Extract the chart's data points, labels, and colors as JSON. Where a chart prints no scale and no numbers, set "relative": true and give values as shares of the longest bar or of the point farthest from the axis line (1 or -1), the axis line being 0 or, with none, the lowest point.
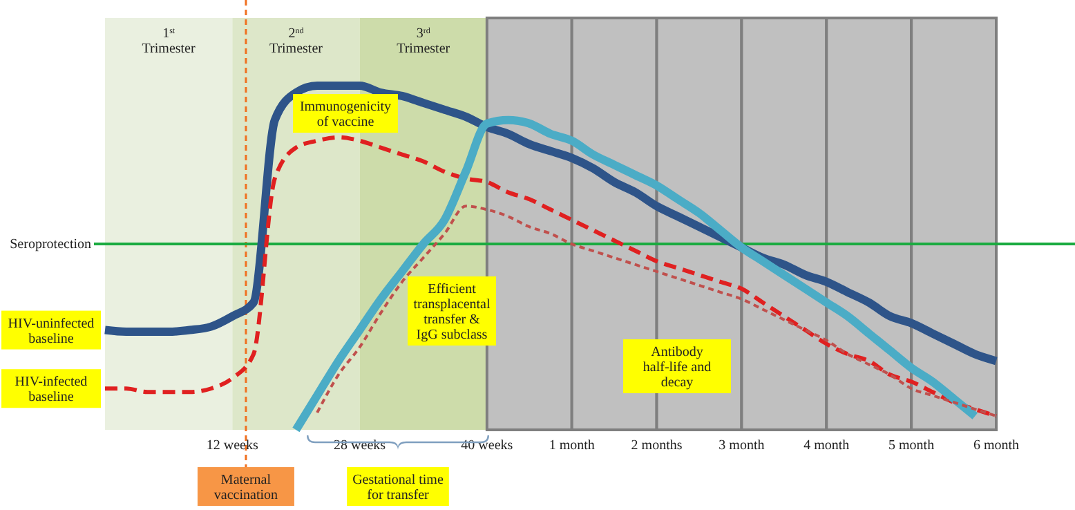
{
  "chart_data": {
    "type": "line",
    "relative": true,
    "tick_labels": "x",
    "categories": [
      null,
      null,
      null,
      null,
      null,
      null,
      "12 weeks",
      null,
      null,
      null,
      null,
      null,
      "28 weeks",
      null,
      null,
      null,
      null,
      null,
      "40 weeks",
      null,
      null,
      null,
      "1 month",
      null,
      null,
      null,
      "2 months",
      null,
      null,
      null,
      "3 month",
      null,
      null,
      null,
      "4 month",
      null,
      null,
      null,
      "5 month",
      null,
      null,
      null,
      "6 month"
    ],
    "series": [
      {
        "name": "HIV-uninfected baseline",
        "color": "#2e5489",
        "line_style": "solid",
        "values": [
          0.29,
          0.285,
          0.285,
          0.285,
          0.29,
          0.3,
          0.33,
          0.37,
          0.9,
          0.98,
          1.0,
          1.0,
          1.0,
          0.98,
          0.97,
          0.95,
          0.93,
          0.91,
          0.88,
          0.86,
          0.83,
          0.81,
          0.79,
          0.76,
          0.72,
          0.69,
          0.65,
          0.62,
          0.59,
          0.56,
          0.53,
          0.5,
          0.48,
          0.45,
          0.43,
          0.4,
          0.37,
          0.33,
          0.31,
          0.28,
          0.25,
          0.22,
          0.2
        ]
      },
      {
        "name": "HIV-infected baseline",
        "color": "#e02020",
        "line_style": "dashed",
        "values": [
          0.12,
          0.12,
          0.11,
          0.11,
          0.11,
          0.12,
          0.15,
          0.22,
          0.73,
          0.82,
          0.84,
          0.85,
          0.84,
          0.82,
          0.8,
          0.78,
          0.75,
          0.73,
          0.72,
          0.69,
          0.67,
          0.64,
          0.61,
          0.58,
          0.55,
          0.52,
          0.49,
          0.47,
          0.45,
          0.43,
          0.41,
          0.37,
          0.33,
          0.29,
          0.25,
          0.22,
          0.2,
          0.16,
          0.14,
          0.11,
          0.08,
          0.06,
          0.04
        ]
      },
      {
        "color": "#4bacc6",
        "line_style": "solid",
        "values": [
          null,
          null,
          null,
          null,
          null,
          null,
          null,
          null,
          null,
          0.0,
          0.1,
          0.2,
          0.29,
          0.38,
          0.46,
          0.54,
          0.61,
          0.75,
          0.89,
          0.9,
          0.89,
          0.86,
          0.84,
          0.8,
          0.77,
          0.74,
          0.71,
          0.67,
          0.63,
          0.58,
          0.53,
          0.49,
          0.45,
          0.41,
          0.37,
          0.33,
          0.28,
          0.23,
          0.18,
          0.14,
          0.09,
          0.04,
          null
        ]
      },
      {
        "color": "#c0504d",
        "line_style": "dotted",
        "values": [
          null,
          null,
          null,
          null,
          null,
          null,
          null,
          null,
          null,
          null,
          0.05,
          0.16,
          0.24,
          0.34,
          0.43,
          0.5,
          0.57,
          0.65,
          0.64,
          0.62,
          0.59,
          0.57,
          0.54,
          0.52,
          0.5,
          0.48,
          0.46,
          0.44,
          0.42,
          0.4,
          0.38,
          0.35,
          0.32,
          0.29,
          0.26,
          0.22,
          0.19,
          0.16,
          0.12,
          0.1,
          0.08,
          0.06,
          0.04
        ]
      }
    ],
    "ref_lines": [
      {
        "axis": "y",
        "value": 0.54,
        "label": "Seroprotection",
        "color": "#1aab40",
        "line_style": "solid"
      }
    ],
    "annotations": [
      "1$^{st}$ Trimester",
      "2$^{nd}$ Trimester",
      "3$^{rd}$ Trimester",
      "Immunogenicity of vaccine",
      "Efficient transplacental transfer & IgG subclass",
      "Antibody half-life and decay",
      "Gestational time for transfer",
      "Maternal vaccination"
    ]
  }
}
